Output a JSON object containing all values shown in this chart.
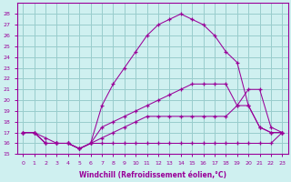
{
  "xlabel": "Windchill (Refroidissement éolien,°C)",
  "bg_color": "#cff0f0",
  "grid_color": "#99cccc",
  "line_color": "#990099",
  "x_ticks": [
    0,
    1,
    2,
    3,
    4,
    5,
    6,
    7,
    8,
    9,
    10,
    11,
    12,
    13,
    14,
    15,
    16,
    17,
    18,
    19,
    20,
    21,
    22,
    23
  ],
  "ylim": [
    15,
    29
  ],
  "xlim": [
    -0.5,
    23.5
  ],
  "yticks": [
    15,
    16,
    17,
    18,
    19,
    20,
    21,
    22,
    23,
    24,
    25,
    26,
    27,
    28
  ],
  "series": [
    [
      17.0,
      17.0,
      16.0,
      16.0,
      16.0,
      15.5,
      16.0,
      16.0,
      16.0,
      16.0,
      16.0,
      16.0,
      16.0,
      16.0,
      16.0,
      16.0,
      16.0,
      16.0,
      16.0,
      16.0,
      16.0,
      16.0,
      16.0,
      17.0
    ],
    [
      17.0,
      17.0,
      16.0,
      16.0,
      16.0,
      15.5,
      16.0,
      16.5,
      17.0,
      17.5,
      18.0,
      18.5,
      18.5,
      18.5,
      18.5,
      18.5,
      18.5,
      18.5,
      18.5,
      19.5,
      19.5,
      17.5,
      17.0,
      17.0
    ],
    [
      17.0,
      17.0,
      16.0,
      16.0,
      16.0,
      15.5,
      16.0,
      17.5,
      18.0,
      18.5,
      19.0,
      19.5,
      20.0,
      20.5,
      21.0,
      21.5,
      21.5,
      21.5,
      21.5,
      19.5,
      21.0,
      21.0,
      17.5,
      17.0
    ],
    [
      17.0,
      17.0,
      16.5,
      16.0,
      16.0,
      15.5,
      16.0,
      19.5,
      21.5,
      23.0,
      24.5,
      26.0,
      27.0,
      27.5,
      28.0,
      27.5,
      27.0,
      26.0,
      24.5,
      23.5,
      19.5,
      17.5,
      17.0,
      17.0
    ]
  ]
}
